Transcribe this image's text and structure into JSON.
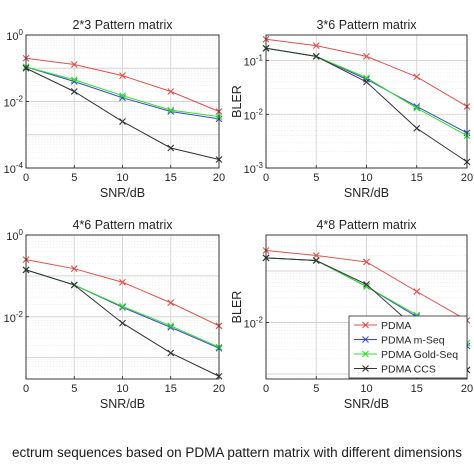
{
  "caption": "ectrum sequences based on PDMA pattern matrix with different dimensions",
  "colors": {
    "PDMA": "#d9534f",
    "PDMA m-Seq": "#3b4cc0",
    "PDMA Gold-Seq": "#33dd33",
    "PDMA CCS": "#333333"
  },
  "chart_data": [
    {
      "type": "line",
      "title": "2*3 Pattern matrix",
      "xlabel": "SNR/dB",
      "ylabel": "",
      "x": [
        0,
        5,
        10,
        15,
        20
      ],
      "xticks": [
        "0",
        "5",
        "10",
        "15",
        "20"
      ],
      "xlim": [
        0,
        20
      ],
      "ylim": [
        0.0001,
        1
      ],
      "yscale": "log",
      "yticks": [
        {
          "value": 1,
          "label": "10",
          "exp": "0"
        },
        {
          "value": 0.01,
          "label": "10",
          "exp": "-2"
        },
        {
          "value": 0.0001,
          "label": "10",
          "exp": "-4"
        }
      ],
      "grid": true,
      "legend": false,
      "series": [
        {
          "name": "PDMA",
          "values": [
            0.2,
            0.13,
            0.06,
            0.02,
            0.005
          ]
        },
        {
          "name": "PDMA m-Seq",
          "values": [
            0.11,
            0.04,
            0.013,
            0.005,
            0.003
          ]
        },
        {
          "name": "PDMA Gold-Seq",
          "values": [
            0.11,
            0.045,
            0.015,
            0.0055,
            0.0035
          ]
        },
        {
          "name": "PDMA CCS",
          "values": [
            0.1,
            0.02,
            0.0025,
            0.0004,
            0.00018
          ]
        }
      ]
    },
    {
      "type": "line",
      "title": "3*6 Pattern matrix",
      "xlabel": "SNR/dB",
      "ylabel": "BLER",
      "x": [
        0,
        5,
        10,
        15,
        20
      ],
      "xticks": [
        "0",
        "5",
        "10",
        "15",
        "20"
      ],
      "xlim": [
        0,
        20
      ],
      "ylim": [
        0.001,
        0.3
      ],
      "yscale": "log",
      "yticks": [
        {
          "value": 0.1,
          "label": "10",
          "exp": "-1"
        },
        {
          "value": 0.01,
          "label": "10",
          "exp": "-2"
        },
        {
          "value": 0.001,
          "label": "10",
          "exp": "-3"
        }
      ],
      "grid": true,
      "legend": false,
      "series": [
        {
          "name": "PDMA",
          "values": [
            0.25,
            0.19,
            0.12,
            0.05,
            0.014
          ]
        },
        {
          "name": "PDMA m-Seq",
          "values": [
            0.17,
            0.12,
            0.045,
            0.014,
            0.0045
          ]
        },
        {
          "name": "PDMA Gold-Seq",
          "values": [
            0.17,
            0.12,
            0.048,
            0.013,
            0.004
          ]
        },
        {
          "name": "PDMA CCS",
          "values": [
            0.17,
            0.12,
            0.04,
            0.0055,
            0.0013
          ]
        }
      ]
    },
    {
      "type": "line",
      "title": "4*6 Pattern matrix",
      "xlabel": "SNR/dB",
      "ylabel": "",
      "x": [
        0,
        5,
        10,
        15,
        20
      ],
      "xticks": [
        "0",
        "5",
        "10",
        "15",
        "20"
      ],
      "xlim": [
        0,
        20
      ],
      "ylim": [
        0.0003,
        1
      ],
      "yscale": "log",
      "yticks": [
        {
          "value": 1,
          "label": "10",
          "exp": "0"
        },
        {
          "value": 0.01,
          "label": "10",
          "exp": "-2"
        }
      ],
      "grid": true,
      "legend": false,
      "series": [
        {
          "name": "PDMA",
          "values": [
            0.25,
            0.15,
            0.07,
            0.022,
            0.006
          ]
        },
        {
          "name": "PDMA m-Seq",
          "values": [
            0.14,
            0.06,
            0.017,
            0.0055,
            0.0017
          ]
        },
        {
          "name": "PDMA Gold-Seq",
          "values": [
            0.14,
            0.06,
            0.018,
            0.006,
            0.0018
          ]
        },
        {
          "name": "PDMA CCS",
          "values": [
            0.14,
            0.06,
            0.007,
            0.0013,
            0.00035
          ]
        }
      ]
    },
    {
      "type": "line",
      "title": "4*8 Pattern matrix",
      "xlabel": "SNR/dB",
      "ylabel": "BLER",
      "x": [
        0,
        5,
        10,
        15,
        20
      ],
      "xticks": [
        "0",
        "5",
        "10",
        "15",
        "20"
      ],
      "xlim": [
        0,
        20
      ],
      "ylim": [
        0.0008,
        0.5
      ],
      "yscale": "log",
      "yticks": [
        {
          "value": 0.01,
          "label": "10",
          "exp": "-2"
        }
      ],
      "grid": true,
      "legend": true,
      "legend_position": "bottom-right",
      "series": [
        {
          "name": "PDMA",
          "values": [
            0.25,
            0.2,
            0.15,
            0.04,
            0.011
          ]
        },
        {
          "name": "PDMA m-Seq",
          "values": [
            0.18,
            0.16,
            0.05,
            0.013,
            0.0035
          ]
        },
        {
          "name": "PDMA Gold-Seq",
          "values": [
            0.18,
            0.16,
            0.05,
            0.014,
            0.004
          ]
        },
        {
          "name": "PDMA CCS",
          "values": [
            0.18,
            0.16,
            0.055,
            0.0075,
            0.0012
          ]
        }
      ]
    }
  ]
}
